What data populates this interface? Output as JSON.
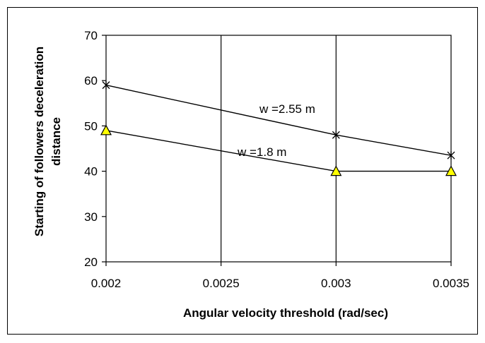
{
  "chart_data": {
    "type": "line",
    "title": "",
    "xlabel": "Angular velocity threshold (rad/sec)",
    "ylabel_lines": [
      "Starting of followers deceleration",
      "distance"
    ],
    "xlim": [
      0.002,
      0.0035
    ],
    "ylim": [
      20,
      70
    ],
    "x_ticks": [
      "0.002",
      "0.0025",
      "0.003",
      "0.0035"
    ],
    "y_ticks": [
      "20",
      "30",
      "40",
      "50",
      "60",
      "70"
    ],
    "grid": "vertical",
    "series": [
      {
        "name": "w =2.55 m",
        "marker": "star",
        "color": "#000000",
        "x": [
          0.002,
          0.003,
          0.0035
        ],
        "y": [
          59,
          48,
          43.5
        ]
      },
      {
        "name": "w =1.8 m",
        "marker": "triangle",
        "color": "#000000",
        "marker_fill": "#ffff00",
        "x": [
          0.002,
          0.003,
          0.0035
        ],
        "y": [
          49,
          40,
          40
        ]
      }
    ]
  }
}
